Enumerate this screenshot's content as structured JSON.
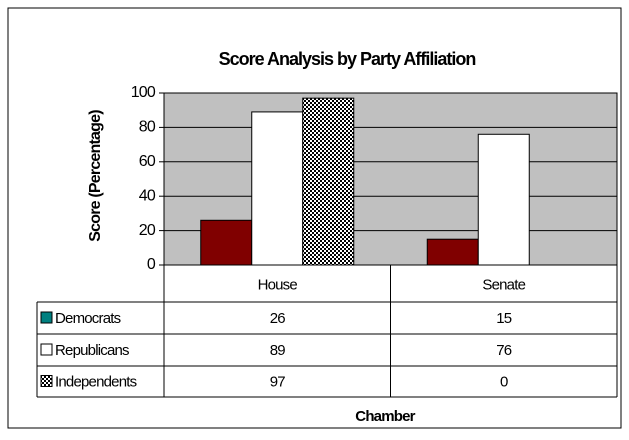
{
  "chart_data": {
    "type": "bar",
    "title": "Score Analysis by Party Affiliation",
    "x_label": "Chamber",
    "y_label": "Score (Percentage)",
    "categories": [
      "House",
      "Senate"
    ],
    "series": [
      {
        "name": "Democrats",
        "color": "#800000",
        "key_color": "#008080",
        "values": [
          26,
          15
        ]
      },
      {
        "name": "Republicans",
        "color": "#ffffff",
        "values": [
          89,
          76
        ]
      },
      {
        "name": "Independents",
        "color": "#000000",
        "pattern": "checkerboard",
        "values": [
          97,
          0
        ]
      }
    ],
    "ylim": [
      0,
      100
    ],
    "yticks": [
      0,
      20,
      40,
      60,
      80,
      100
    ],
    "grid": true,
    "plot_background": "#c0c0c0",
    "data_table": true
  }
}
